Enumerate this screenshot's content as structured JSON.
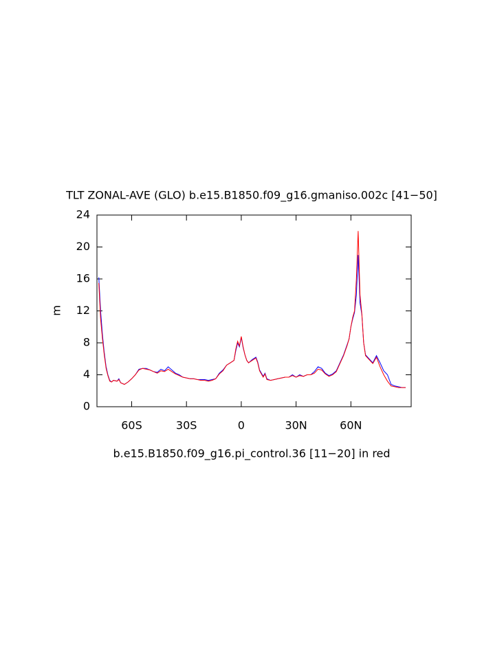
{
  "chart_data": {
    "type": "line",
    "title": "TLT ZONAL-AVE (GLO) b.e15.B1850.f09_g16.gmaniso.002c [41−50]",
    "subtitle": "b.e15.B1850.f09_g16.pi_control.36 [11−20] in red",
    "y_label": "m",
    "x": [
      -78,
      -77,
      -76,
      -75,
      -74,
      -73,
      -72,
      -71,
      -70,
      -68,
      -67,
      -66,
      -64,
      -62,
      -60,
      -58,
      -56,
      -54,
      -52,
      -50,
      -48,
      -46,
      -44,
      -42,
      -40,
      -38,
      -36,
      -34,
      -32,
      -30,
      -28,
      -26,
      -24,
      -22,
      -20,
      -18,
      -16,
      -14,
      -12,
      -10,
      -8,
      -6,
      -4,
      -3,
      -2,
      -1,
      0,
      1,
      2,
      3,
      4,
      6,
      8,
      9,
      10,
      12,
      13,
      14,
      16,
      18,
      20,
      22,
      24,
      26,
      28,
      30,
      32,
      34,
      36,
      38,
      40,
      42,
      44,
      46,
      48,
      50,
      52,
      54,
      56,
      58,
      59,
      60,
      61,
      62,
      63,
      64,
      65,
      66,
      67,
      68,
      70,
      72,
      74,
      76,
      78,
      80,
      82,
      84,
      86,
      88,
      90
    ],
    "series": [
      {
        "color": "#0000ff",
        "values": [
          16.2,
          12,
          9,
          6.8,
          5,
          4,
          3.3,
          3.1,
          3.3,
          3.2,
          3.5,
          3.0,
          2.8,
          3.1,
          3.5,
          4.0,
          4.7,
          4.8,
          4.8,
          4.6,
          4.4,
          4.3,
          4.7,
          4.5,
          5.0,
          4.6,
          4.2,
          4.0,
          3.7,
          3.6,
          3.5,
          3.5,
          3.4,
          3.4,
          3.4,
          3.3,
          3.4,
          3.5,
          4.2,
          4.6,
          5.2,
          5.5,
          5.8,
          7,
          8,
          7.5,
          8.7,
          7.4,
          6.5,
          5.8,
          5.5,
          5.9,
          6.2,
          5.6,
          4.6,
          3.8,
          4.2,
          3.5,
          3.3,
          3.4,
          3.5,
          3.6,
          3.7,
          3.7,
          4.0,
          3.7,
          4.0,
          3.8,
          4.0,
          4.0,
          4.4,
          5.0,
          4.8,
          4.2,
          3.9,
          4.1,
          4.5,
          5.5,
          6.5,
          7.8,
          8.5,
          10,
          11,
          11.8,
          14,
          19,
          13,
          11.5,
          8,
          6.5,
          6.0,
          5.5,
          6.4,
          5.5,
          4.5,
          4.0,
          2.8,
          2.6,
          2.5,
          2.4,
          2.4
        ]
      },
      {
        "color": "#ff0000",
        "values": [
          15.5,
          11,
          8.5,
          6.5,
          4.8,
          3.9,
          3.2,
          3.1,
          3.3,
          3.2,
          3.4,
          3.0,
          2.8,
          3.1,
          3.5,
          4.0,
          4.6,
          4.8,
          4.7,
          4.6,
          4.4,
          4.2,
          4.5,
          4.4,
          4.7,
          4.4,
          4.1,
          3.9,
          3.7,
          3.6,
          3.5,
          3.5,
          3.4,
          3.3,
          3.3,
          3.2,
          3.3,
          3.5,
          4.1,
          4.5,
          5.2,
          5.5,
          5.8,
          7.2,
          8.2,
          7.6,
          8.8,
          7.5,
          6.5,
          5.8,
          5.5,
          5.8,
          6.1,
          5.5,
          4.5,
          3.7,
          4.1,
          3.4,
          3.3,
          3.4,
          3.5,
          3.6,
          3.7,
          3.7,
          3.9,
          3.7,
          3.9,
          3.8,
          4.0,
          4.0,
          4.2,
          4.7,
          4.6,
          4.1,
          3.8,
          4.0,
          4.4,
          5.4,
          6.4,
          7.7,
          8.5,
          10,
          11.2,
          12,
          16,
          22,
          14,
          11.6,
          8,
          6.4,
          5.9,
          5.4,
          6.2,
          5.0,
          4.0,
          3.2,
          2.6,
          2.5,
          2.4,
          2.4,
          2.4
        ]
      }
    ],
    "xlim": [
      -79,
      93
    ],
    "xticks": [
      {
        "value": -60,
        "label": "60S"
      },
      {
        "value": -30,
        "label": "30S"
      },
      0,
      {
        "value": 30,
        "label": "30N"
      },
      {
        "value": 60,
        "label": "60N"
      }
    ],
    "ylim": [
      0,
      24
    ],
    "yticks": [
      0,
      4,
      8,
      12,
      16,
      20,
      24
    ]
  }
}
